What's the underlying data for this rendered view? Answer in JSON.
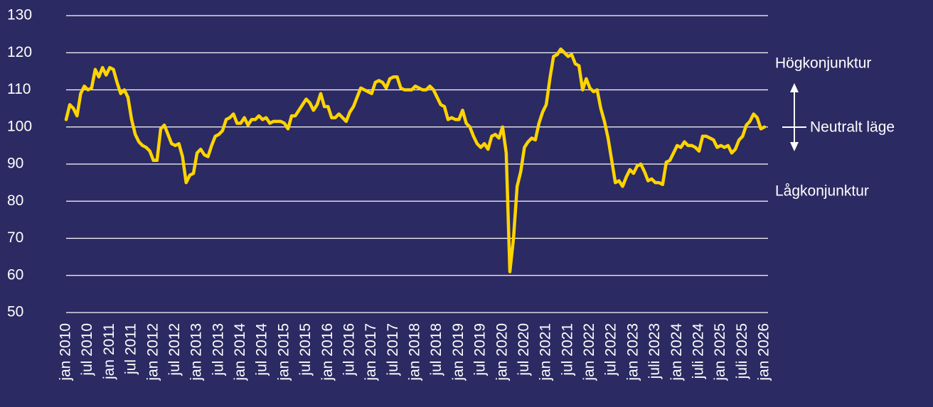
{
  "chart_data": {
    "type": "line",
    "color": "#ffd400",
    "ylim": [
      50,
      130
    ],
    "yticks": [
      50,
      60,
      70,
      80,
      90,
      100,
      110,
      120,
      130
    ],
    "grid": true,
    "annotations": [
      "Högkonjunktur",
      "Neutralt läge",
      "Lågkonjunktur"
    ],
    "categories": [
      "jan 2010",
      null,
      null,
      null,
      null,
      null,
      "jul 2010",
      null,
      null,
      null,
      null,
      null,
      "jan 2011",
      null,
      null,
      null,
      null,
      null,
      "jul 2011",
      null,
      null,
      null,
      null,
      null,
      "jan 2012",
      null,
      null,
      null,
      null,
      null,
      "jul 2012",
      null,
      null,
      null,
      null,
      null,
      "jan 2013",
      null,
      null,
      null,
      null,
      null,
      "jul 2013",
      null,
      null,
      null,
      null,
      null,
      "jan 2014",
      null,
      null,
      null,
      null,
      null,
      "jul 2014",
      null,
      null,
      null,
      null,
      null,
      "jan 2015",
      null,
      null,
      null,
      null,
      null,
      "jul 2015",
      null,
      null,
      null,
      null,
      null,
      "jan 2016",
      null,
      null,
      null,
      null,
      null,
      "jul 2016",
      null,
      null,
      null,
      null,
      null,
      "jan 2017",
      null,
      null,
      null,
      null,
      null,
      "jul 2017",
      null,
      null,
      null,
      null,
      null,
      "jan 2018",
      null,
      null,
      null,
      null,
      null,
      "jul 2018",
      null,
      null,
      null,
      null,
      null,
      "jan 2019",
      null,
      null,
      null,
      null,
      null,
      "jul 2019",
      null,
      null,
      null,
      null,
      null,
      "jan 2020",
      null,
      null,
      null,
      null,
      null,
      "jul 2020",
      null,
      null,
      null,
      null,
      null,
      "jan 2021",
      null,
      null,
      null,
      null,
      null,
      "jul 2021",
      null,
      null,
      null,
      null,
      null,
      "jan 2022",
      null,
      null,
      null,
      null,
      null,
      "jul 2022",
      null,
      null,
      null,
      null,
      null,
      "jan 2023",
      null,
      null,
      null,
      null,
      null,
      "juli 2023",
      null,
      null,
      null,
      null,
      null,
      "jan 2024",
      null,
      null,
      null,
      null,
      null,
      "juli 2024",
      null,
      null,
      null,
      null,
      null,
      "jan 2025",
      null,
      null,
      null,
      null,
      null,
      "juli 2025",
      null,
      null,
      null,
      null,
      null,
      "jan 2026"
    ],
    "values": [
      102,
      106,
      105,
      103,
      109,
      111,
      110,
      110.5,
      115.5,
      113.5,
      116,
      114,
      116,
      115.5,
      112,
      109,
      110,
      108,
      102,
      98,
      96,
      95,
      94.5,
      93.5,
      91,
      91,
      99.5,
      100.5,
      98,
      95.5,
      95,
      95.5,
      92,
      85,
      87,
      87.5,
      93,
      94,
      92.5,
      92,
      95,
      97.5,
      98,
      99,
      102,
      102.5,
      103.5,
      101,
      101,
      102.5,
      100.5,
      102,
      102,
      103,
      102,
      102.5,
      101,
      101.5,
      101.5,
      101.5,
      101,
      99.5,
      103,
      103,
      104.5,
      106,
      107.5,
      106.5,
      104.5,
      106,
      109,
      105.5,
      105.5,
      102.5,
      102.5,
      103.5,
      102.5,
      101.5,
      104,
      105.5,
      108,
      110.5,
      110,
      109.5,
      109,
      112,
      112.5,
      112,
      110.5,
      113,
      113.5,
      113.5,
      110.5,
      110,
      110,
      110,
      111,
      110.5,
      110,
      110,
      111,
      110,
      108,
      106,
      105.5,
      102,
      102.5,
      102,
      102,
      104.5,
      101,
      100,
      97.5,
      95.5,
      94.5,
      95.5,
      94,
      97.5,
      98,
      97,
      100,
      93,
      61,
      70,
      84,
      88,
      94.5,
      96,
      97,
      96.5,
      101,
      104,
      106,
      113,
      119,
      119.5,
      121,
      120,
      119,
      119.5,
      117,
      116.5,
      110,
      113,
      110.5,
      109.5,
      110,
      105,
      101.5,
      97,
      91,
      85,
      85.5,
      84,
      86.5,
      88.5,
      87.5,
      89.5,
      90,
      88,
      85.5,
      86,
      85,
      85,
      84.5,
      90.5,
      91,
      93,
      95,
      94.5,
      96,
      95,
      95,
      94.5,
      93.5,
      97.5,
      97.5,
      97,
      96.5,
      94.5,
      95,
      94.5,
      95,
      93,
      94,
      96.5,
      97.5,
      100.5,
      101.5,
      103.5,
      102.5,
      99.5,
      100
    ]
  }
}
